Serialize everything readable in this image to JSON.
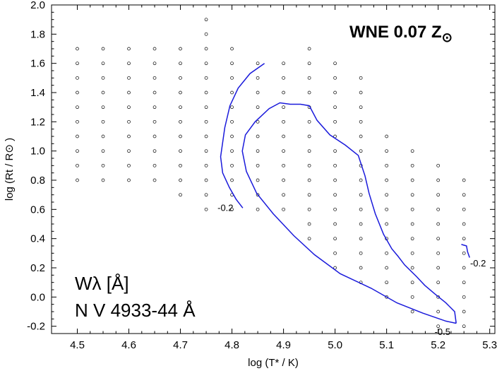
{
  "chart_data": {
    "type": "scatter",
    "title": "WNE 0.07 Z",
    "title_symbol": "⊙",
    "xlabel": "log (T* / K)",
    "ylabel": "log (Rt / R⊙ )",
    "xlim": [
      4.45,
      5.31
    ],
    "ylim": [
      -0.25,
      2.0
    ],
    "x_ticks": [
      "4.5",
      "4.6",
      "4.7",
      "4.8",
      "4.9",
      "5.0",
      "5.1",
      "5.2",
      "5.3"
    ],
    "y_ticks": [
      "-0.2",
      "0.0",
      "0.2",
      "0.4",
      "0.6",
      "0.8",
      "1.0",
      "1.2",
      "1.4",
      "1.6",
      "1.8",
      "2.0"
    ],
    "annotation_line1": "Wλ [Å]",
    "annotation_line2": "N V 4933-44 Å",
    "grid_columns": [
      {
        "x": 4.5,
        "y_from": 0.8,
        "y_to": 1.7
      },
      {
        "x": 4.55,
        "y_from": 0.8,
        "y_to": 1.7
      },
      {
        "x": 4.6,
        "y_from": 0.8,
        "y_to": 1.7
      },
      {
        "x": 4.65,
        "y_from": 0.8,
        "y_to": 1.7
      },
      {
        "x": 4.7,
        "y_from": 0.7,
        "y_to": 1.7
      },
      {
        "x": 4.75,
        "y_from": 0.6,
        "y_to": 1.9
      },
      {
        "x": 4.8,
        "y_from": 0.6,
        "y_to": 1.7
      },
      {
        "x": 4.85,
        "y_from": 0.6,
        "y_to": 1.6
      },
      {
        "x": 4.9,
        "y_from": 0.6,
        "y_to": 1.6
      },
      {
        "x": 4.95,
        "y_from": 0.4,
        "y_to": 1.7
      },
      {
        "x": 5.0,
        "y_from": 0.2,
        "y_to": 1.6
      },
      {
        "x": 5.05,
        "y_from": 0.1,
        "y_to": 1.5
      },
      {
        "x": 5.1,
        "y_from": 0.0,
        "y_to": 1.1
      },
      {
        "x": 5.15,
        "y_from": -0.1,
        "y_to": 1.0
      },
      {
        "x": 5.2,
        "y_from": -0.2,
        "y_to": 0.9
      },
      {
        "x": 5.25,
        "y_from": -0.2,
        "y_to": 0.8
      }
    ],
    "contour_color": "#1a1adb",
    "contours": [
      {
        "label": "-0.2",
        "label_pos": [
          4.772,
          0.59
        ],
        "points": [
          [
            4.863,
            1.6
          ],
          [
            4.835,
            1.53
          ],
          [
            4.812,
            1.43
          ],
          [
            4.796,
            1.31
          ],
          [
            4.786,
            1.16
          ],
          [
            4.778,
            0.96
          ],
          [
            4.782,
            0.85
          ],
          [
            4.795,
            0.75
          ],
          [
            4.808,
            0.67
          ],
          [
            4.821,
            0.61
          ]
        ]
      },
      {
        "label": "-0.5",
        "label_pos": [
          5.193,
          -0.26
        ],
        "points": [
          [
            5.235,
            -0.18
          ],
          [
            5.215,
            -0.165
          ],
          [
            5.17,
            -0.11
          ],
          [
            5.12,
            -0.04
          ],
          [
            5.07,
            0.06
          ],
          [
            5.01,
            0.16
          ],
          [
            4.96,
            0.29
          ],
          [
            4.92,
            0.42
          ],
          [
            4.88,
            0.57
          ],
          [
            4.848,
            0.71
          ],
          [
            4.828,
            0.86
          ],
          [
            4.82,
            1.0
          ],
          [
            4.826,
            1.11
          ],
          [
            4.845,
            1.2
          ],
          [
            4.872,
            1.29
          ],
          [
            4.893,
            1.33
          ],
          [
            4.913,
            1.32
          ],
          [
            4.933,
            1.32
          ],
          [
            4.95,
            1.31
          ],
          [
            4.965,
            1.21
          ],
          [
            4.99,
            1.11
          ],
          [
            5.02,
            1.04
          ],
          [
            5.045,
            0.97
          ],
          [
            5.058,
            0.83
          ],
          [
            5.066,
            0.71
          ],
          [
            5.078,
            0.57
          ],
          [
            5.094,
            0.43
          ],
          [
            5.11,
            0.33
          ],
          [
            5.122,
            0.28
          ],
          [
            5.135,
            0.22
          ],
          [
            5.158,
            0.14
          ],
          [
            5.174,
            0.08
          ],
          [
            5.194,
            0.02
          ],
          [
            5.215,
            -0.04
          ],
          [
            5.232,
            -0.1
          ],
          [
            5.235,
            -0.18
          ]
        ]
      },
      {
        "label": "-0.2",
        "label_pos": [
          5.262,
          0.21
        ],
        "points": [
          [
            5.245,
            0.36
          ],
          [
            5.255,
            0.35
          ],
          [
            5.257,
            0.31
          ],
          [
            5.261,
            0.27
          ]
        ]
      }
    ]
  }
}
